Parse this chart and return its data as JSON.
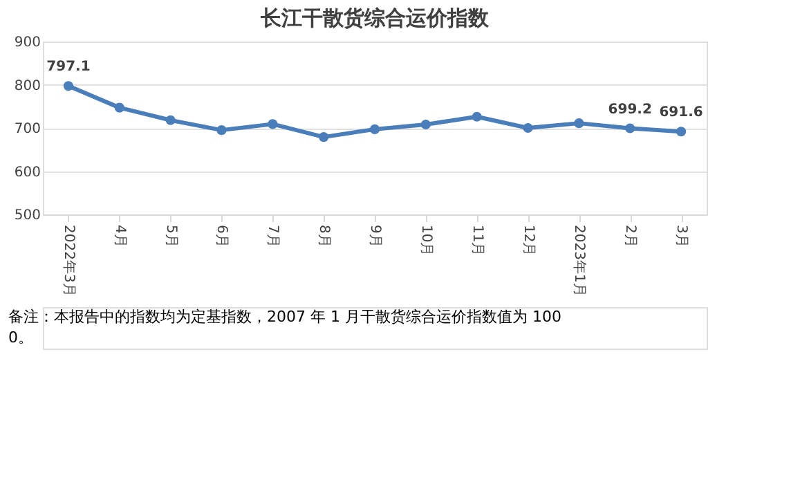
{
  "chart_data": {
    "type": "line",
    "title": "长江干散货综合运价指数",
    "categories": [
      "2022年3月",
      "4月",
      "5月",
      "6月",
      "7月",
      "8月",
      "9月",
      "10月",
      "11月",
      "12月",
      "2023年1月",
      "2月",
      "3月"
    ],
    "series": [
      {
        "color": "#4a7ebb",
        "values": [
          797.1,
          747,
          718,
          695,
          709,
          679,
          697,
          708,
          726,
          700,
          711,
          699.2,
          691.6
        ],
        "value_labels": [
          "797.1",
          null,
          null,
          null,
          null,
          null,
          null,
          null,
          null,
          null,
          null,
          "699.2",
          "691.6"
        ]
      }
    ],
    "ylim": [
      500,
      900
    ],
    "yticks": [
      500,
      600,
      700,
      800,
      900
    ],
    "grid": "y",
    "marker": "circle",
    "line_style": "solid",
    "annotations": [
      "备注：本报告中的指数均为定基指数，2007 年 1 月干散货综合运价指数值为 1000。"
    ]
  }
}
